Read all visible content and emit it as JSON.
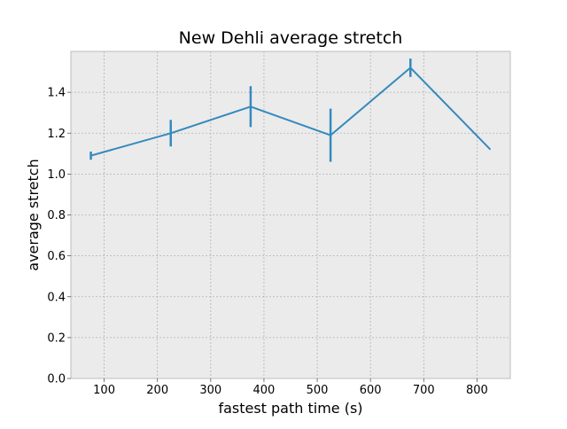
{
  "chart_data": {
    "type": "line",
    "title": "New Dehli average stretch",
    "xlabel": "fastest path time (s)",
    "ylabel": "average stretch",
    "xlim": [
      37.5,
      862.5
    ],
    "ylim": [
      0.0,
      1.6
    ],
    "xticks": [
      100,
      200,
      300,
      400,
      500,
      600,
      700,
      800
    ],
    "yticks": [
      0.0,
      0.2,
      0.4,
      0.6,
      0.8,
      1.0,
      1.2,
      1.4
    ],
    "ytick_labels": [
      "0.0",
      "0.2",
      "0.4",
      "0.6",
      "0.8",
      "1.0",
      "1.2",
      "1.4"
    ],
    "grid": true,
    "series": [
      {
        "x": [
          75,
          225,
          375,
          525,
          675,
          825
        ],
        "y": [
          1.09,
          1.2,
          1.33,
          1.19,
          1.52,
          1.12
        ],
        "yerr": [
          0.02,
          0.065,
          0.1,
          0.13,
          0.045,
          0.0
        ],
        "color": "#348ABD"
      }
    ]
  },
  "style": {
    "plot_bg": "#EBEBEB",
    "grid_color": "#B2B2B2",
    "spine_color": "#BCBCBC",
    "line_color": "#348ABD"
  }
}
